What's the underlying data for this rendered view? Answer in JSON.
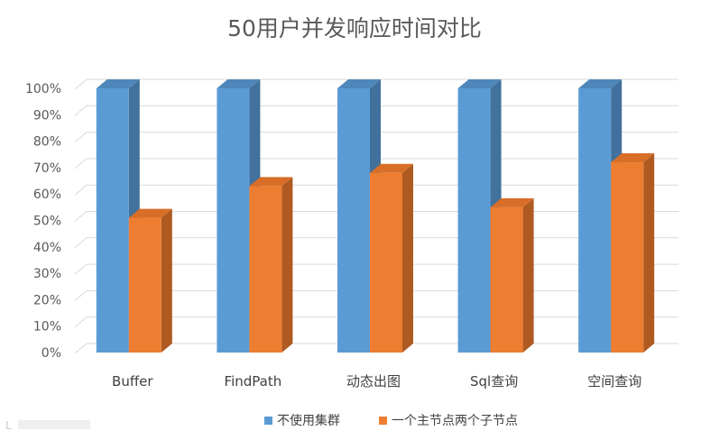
{
  "chart_data": {
    "type": "bar",
    "title": "50用户并发响应时间对比",
    "categories": [
      "Buffer",
      "FindPath",
      "动态出图",
      "Sql查询",
      "空间查询"
    ],
    "series": [
      {
        "name": "不使用集群",
        "values": [
          100,
          100,
          100,
          100,
          100
        ],
        "color": "#5b9bd5",
        "side_color": "#41719c",
        "top_color": "#4f87ba"
      },
      {
        "name": "一个主节点两个子节点",
        "values": [
          51,
          63,
          68,
          55,
          72
        ],
        "color": "#ed7d31",
        "side_color": "#ae5a21",
        "top_color": "#d86e27"
      }
    ],
    "ylim": [
      0,
      100
    ],
    "yticks": [
      "0%",
      "10%",
      "20%",
      "30%",
      "40%",
      "50%",
      "60%",
      "70%",
      "80%",
      "90%",
      "100%"
    ],
    "xlabel": "",
    "ylabel": "",
    "grid": true,
    "legend_position": "bottom"
  },
  "watermark": "L"
}
